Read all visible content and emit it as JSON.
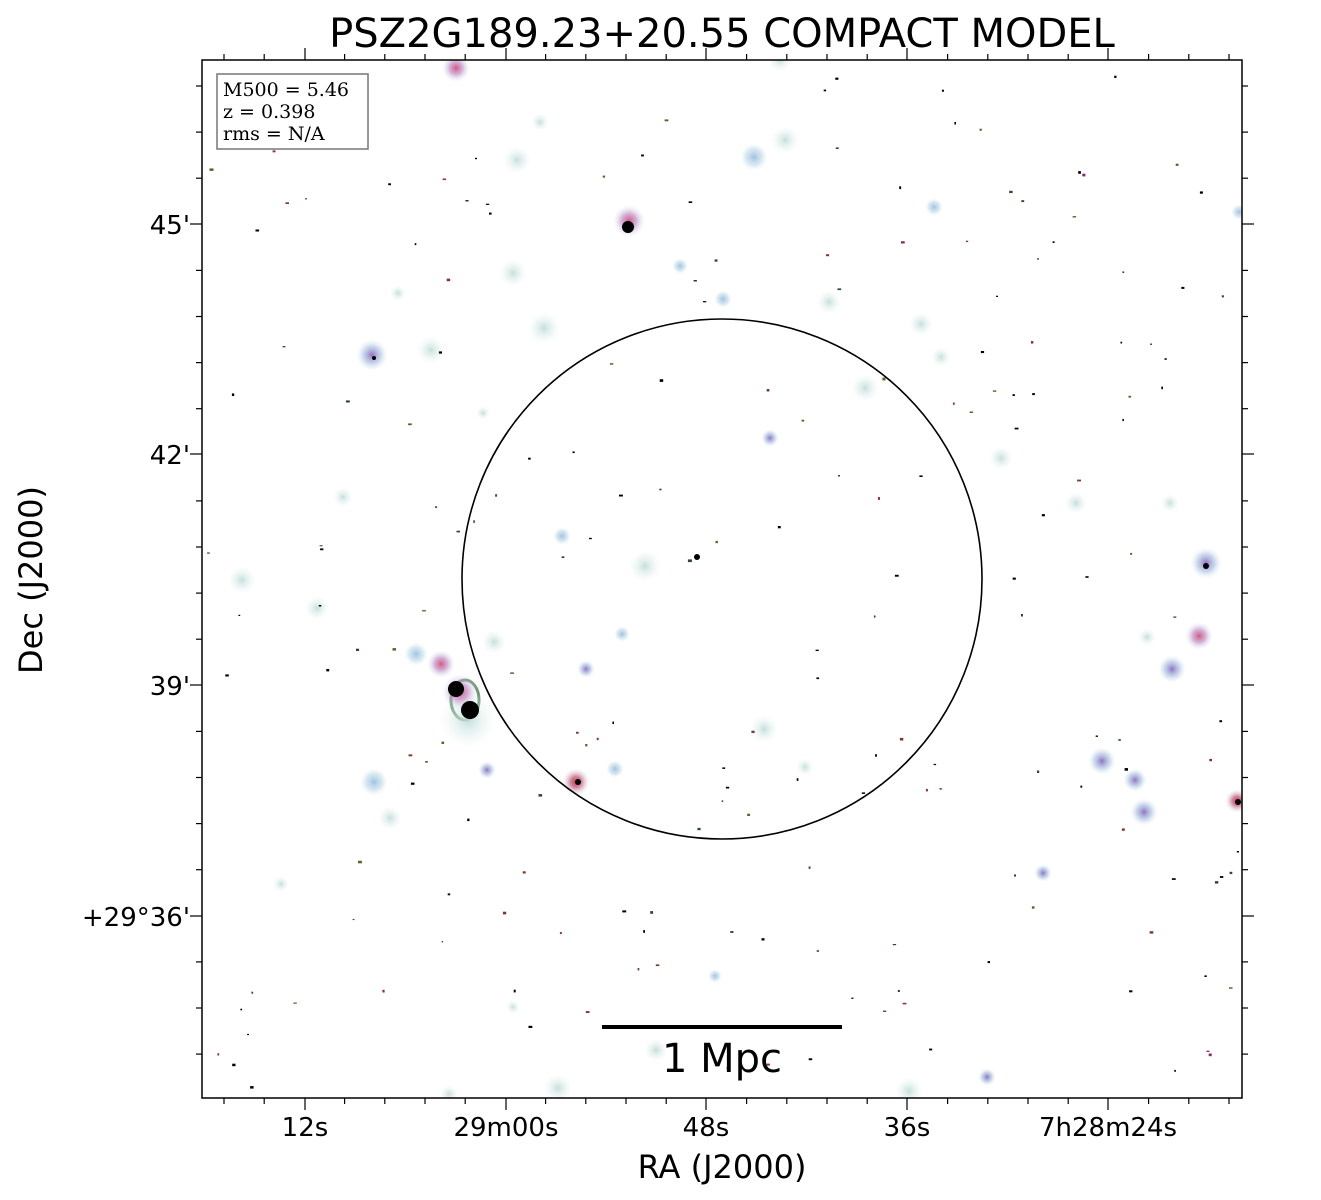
{
  "title": "PSZ2G189.23+20.55 COMPACT MODEL",
  "axes": {
    "xlabel": "RA (J2000)",
    "ylabel": "Dec (J2000)",
    "x_ticks": [
      "12s",
      "29m00s",
      "48s",
      "36s",
      "7h28m24s"
    ],
    "y_ticks": [
      "45'",
      "42'",
      "39'",
      "+29°36'"
    ]
  },
  "info_box": {
    "m500": "M500 = 5.46",
    "z": "z = 0.398",
    "rms": "rms = N/A"
  },
  "scale_bar": {
    "label": "1 Mpc"
  },
  "colors": {
    "frame": "#000000",
    "background": "#ffffff",
    "source_blue": "#a9c6e0",
    "source_pink": "#d7708f",
    "source_purple": "#9b72b8",
    "source_dark": "#000000"
  }
}
